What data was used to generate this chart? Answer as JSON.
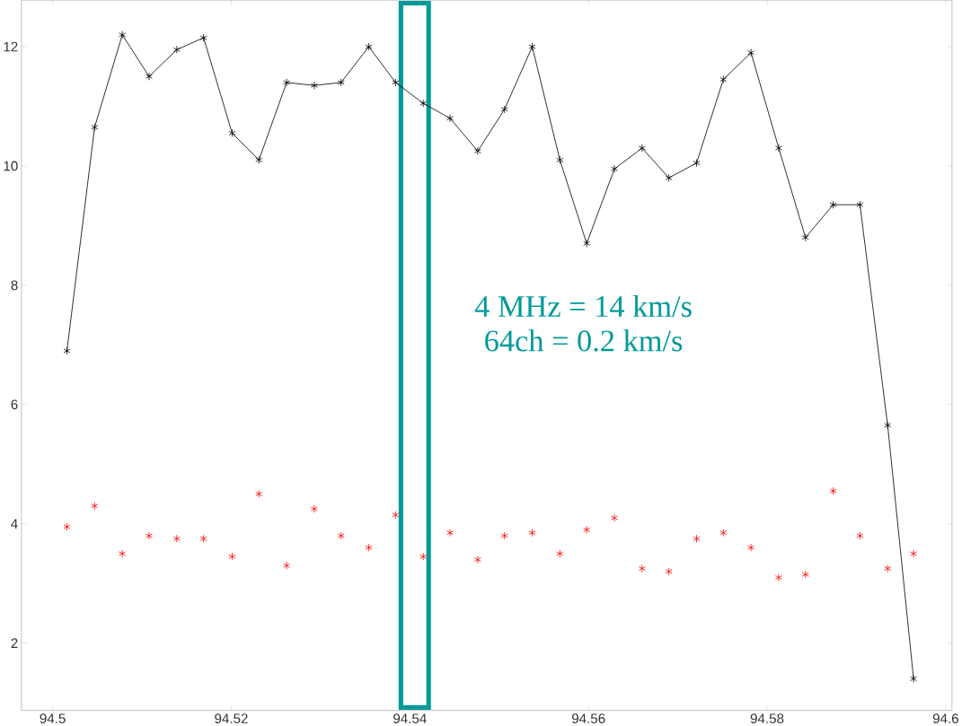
{
  "chart_data": {
    "type": "line",
    "marker": "cross",
    "line_style": "solid",
    "grid": false,
    "x": [
      94.5016,
      94.5047,
      94.5078,
      94.5108,
      94.5139,
      94.5169,
      94.5201,
      94.5231,
      94.5262,
      94.5293,
      94.5323,
      94.5354,
      94.5384,
      94.5415,
      94.5445,
      94.5476,
      94.5506,
      94.5537,
      94.5568,
      94.5598,
      94.5629,
      94.566,
      94.569,
      94.5721,
      94.5751,
      94.5782,
      94.5813,
      94.5843,
      94.5874,
      94.5904,
      94.5935,
      94.5964
    ],
    "series": [
      {
        "color": "#000000",
        "values": [
          6.9,
          10.65,
          12.2,
          11.5,
          11.95,
          12.15,
          10.55,
          10.1,
          11.4,
          11.35,
          11.4,
          12.0,
          11.4,
          11.05,
          10.8,
          10.25,
          10.95,
          12.0,
          10.1,
          8.7,
          9.95,
          10.3,
          9.8,
          10.05,
          11.45,
          11.9,
          10.3,
          8.8,
          9.35,
          9.35,
          5.65,
          1.4
        ]
      },
      {
        "type": "scatter",
        "color": "#ff0000",
        "values": [
          3.95,
          4.3,
          3.5,
          3.8,
          3.75,
          3.75,
          3.45,
          4.5,
          3.3,
          4.25,
          3.8,
          3.6,
          4.15,
          3.45,
          3.85,
          3.4,
          3.8,
          3.85,
          3.5,
          3.9,
          4.1,
          3.25,
          3.2,
          3.75,
          3.85,
          3.6,
          3.1,
          3.15,
          4.55,
          3.8,
          3.25,
          3.5
        ]
      }
    ],
    "xlim": [
      94.4965,
      94.6007
    ],
    "ylim": [
      0.87,
      12.78
    ],
    "xticks": [
      94.5,
      94.52,
      94.54,
      94.56,
      94.58,
      94.6
    ],
    "yticks": [
      2,
      4,
      6,
      8,
      10,
      12
    ],
    "bands": [
      {
        "axis": "x",
        "from": 94.539,
        "to": 94.5421,
        "color": "#009999"
      }
    ],
    "annotations": [
      "4 MHz = 14 km/s",
      "64ch = 0.2 km/s"
    ]
  }
}
